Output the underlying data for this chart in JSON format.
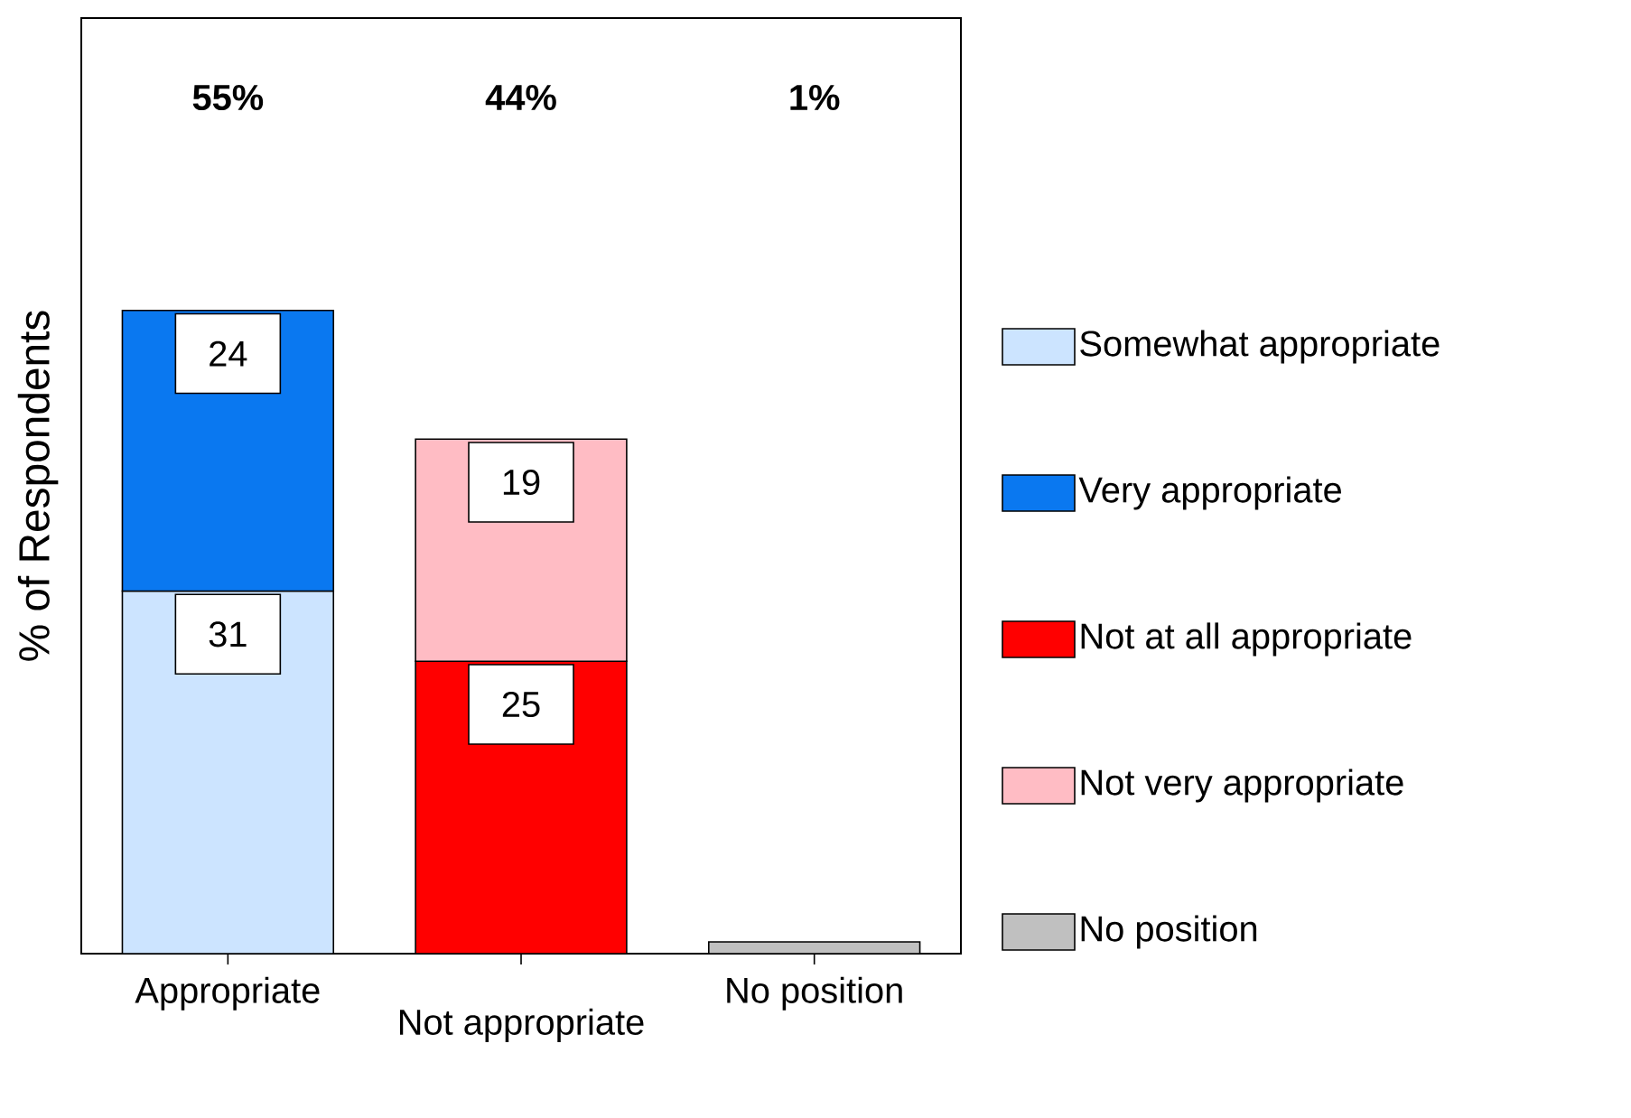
{
  "chart_data": {
    "type": "bar",
    "stacked": true,
    "ylabel": "% of Respondents",
    "categories": [
      "Appropriate",
      "Not appropriate",
      "No position"
    ],
    "series": [
      {
        "name": "Somewhat appropriate",
        "color": "#cce4ff",
        "values": [
          31,
          null,
          null
        ],
        "value_labels": [
          "31",
          null,
          null
        ]
      },
      {
        "name": "Very appropriate",
        "color": "#0a78f0",
        "values": [
          24,
          null,
          null
        ],
        "value_labels": [
          "24",
          null,
          null
        ]
      },
      {
        "name": "Not at all appropriate",
        "color": "#ff0000",
        "values": [
          null,
          25,
          null
        ],
        "value_labels": [
          null,
          "25",
          null
        ]
      },
      {
        "name": "Not very appropriate",
        "color": "#ffbcc4",
        "values": [
          null,
          19,
          null
        ],
        "value_labels": [
          null,
          "19",
          null
        ]
      },
      {
        "name": "No position",
        "color": "#c0c0c0",
        "values": [
          null,
          null,
          1
        ],
        "value_labels": [
          null,
          null,
          null
        ]
      }
    ],
    "annotations": [
      "55%",
      "44%",
      "1%"
    ],
    "ylim": [
      0,
      80
    ],
    "grid": false,
    "legend": "right",
    "tick_labels": "x"
  }
}
